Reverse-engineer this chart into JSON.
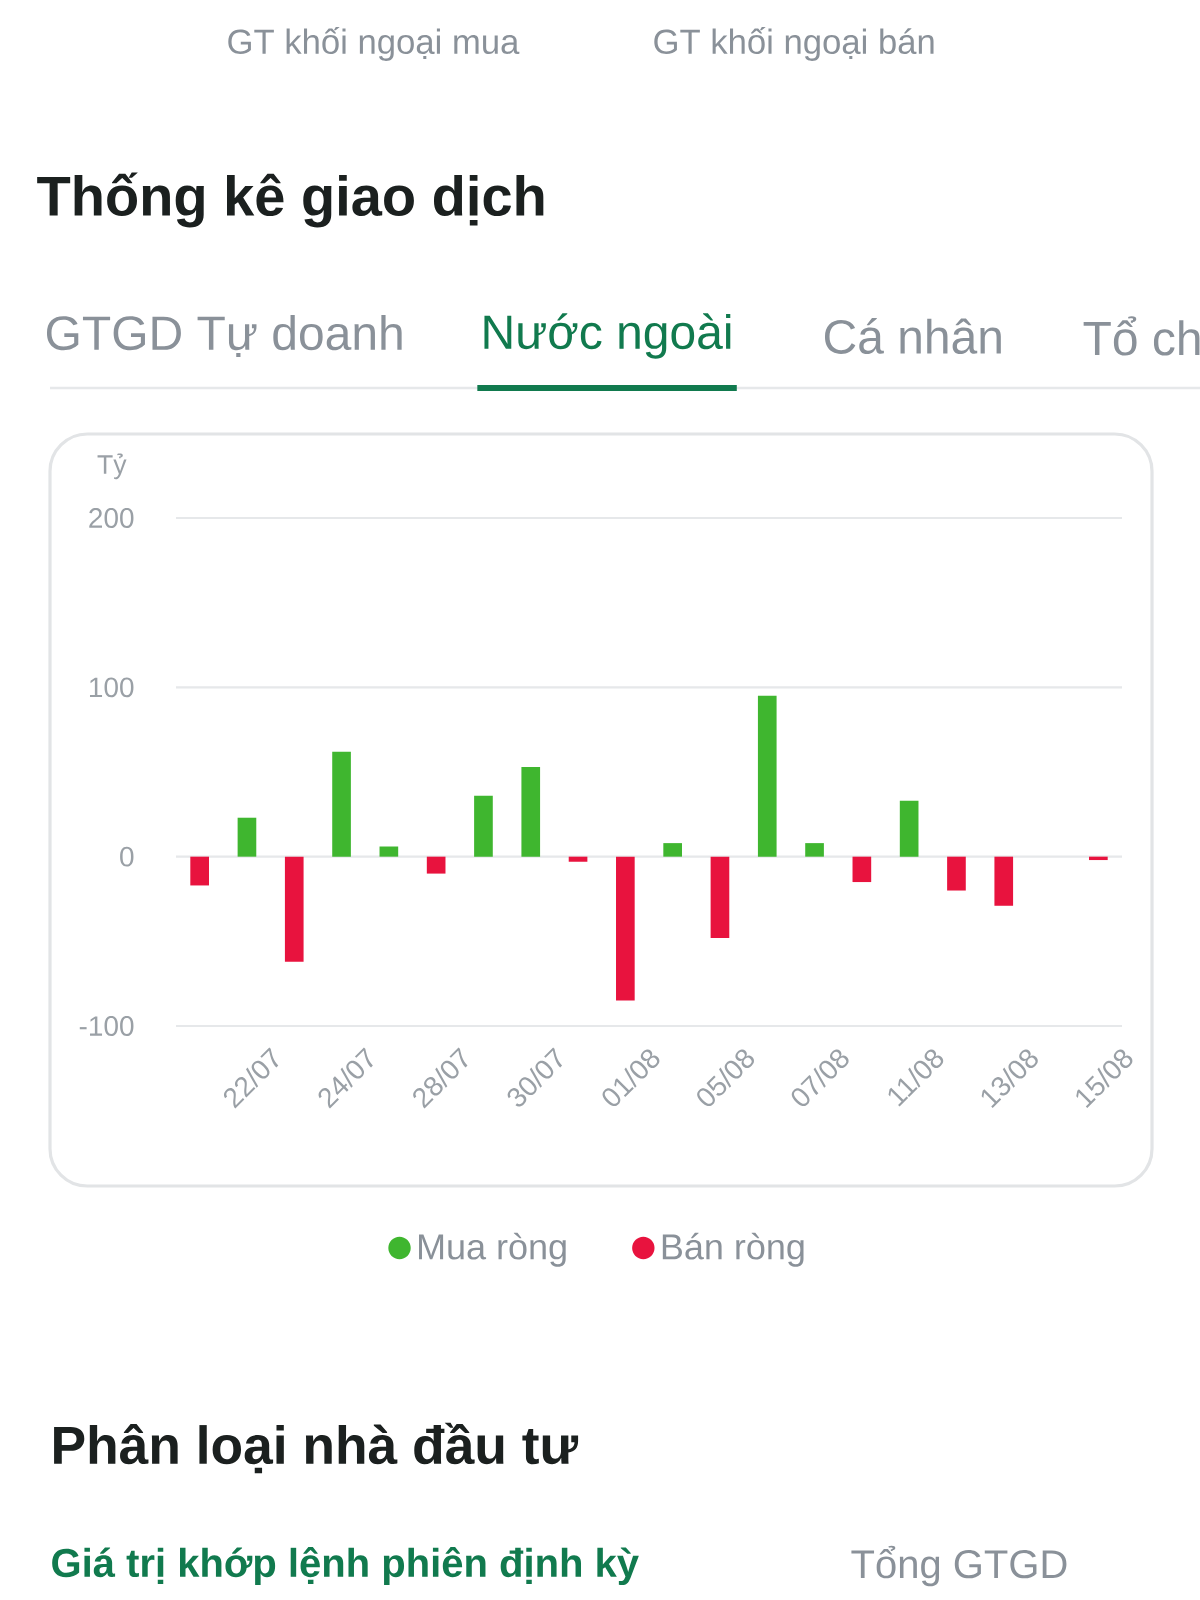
{
  "chart_data": {
    "type": "bar",
    "title": "Thống kê giao dịch",
    "ylabel": "Tỷ",
    "categories": [
      null,
      "22/07",
      null,
      "24/07",
      null,
      "28/07",
      null,
      "30/07",
      null,
      "01/08",
      null,
      "05/08",
      null,
      "07/08",
      null,
      "11/08",
      null,
      "13/08",
      null,
      "15/08"
    ],
    "series": [
      {
        "name": "Mua ròng",
        "color": "#3fb62f",
        "values": [
          null,
          23,
          null,
          62,
          6,
          null,
          36,
          53,
          null,
          null,
          8,
          null,
          95,
          8,
          null,
          33,
          null,
          null,
          null,
          null
        ]
      },
      {
        "name": "Bán ròng",
        "color": "#e8133e",
        "values": [
          -17,
          null,
          -62,
          null,
          null,
          -10,
          null,
          null,
          -3,
          -85,
          null,
          -48,
          null,
          null,
          -15,
          null,
          -20,
          -29,
          null,
          -2
        ]
      }
    ],
    "ylim": [
      -100,
      200
    ],
    "yticks": [
      -100,
      0,
      100,
      200
    ],
    "grid": "y",
    "legend": "bottom",
    "annotations": [
      "GT khối ngoại mua",
      "GT khối ngoại bán",
      "GTGD Tự doanh",
      "Nước ngoài",
      "Cá nhân",
      "Tổ ch",
      "Phân loại nhà đầu tư",
      "Giá trị khớp lệnh phiên định kỳ",
      "Tổng GTGD"
    ]
  }
}
